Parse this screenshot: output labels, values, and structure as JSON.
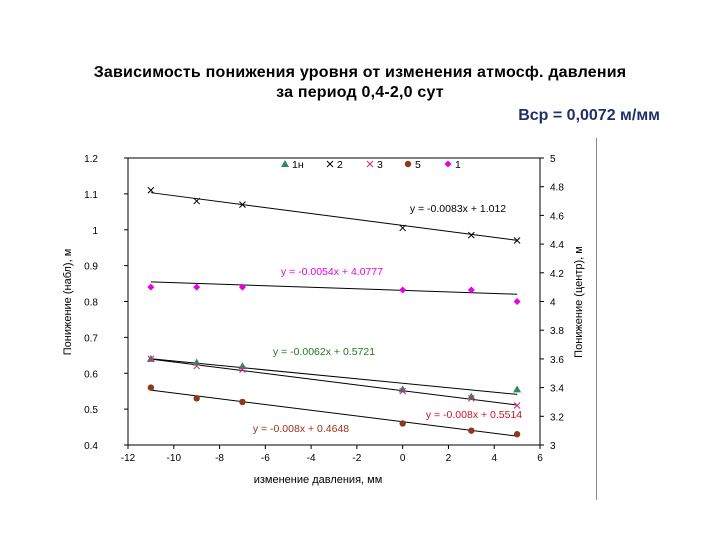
{
  "page": {
    "title_line1": "Зависимость понижения уровня от изменения атмосф. давления",
    "title_line2": "за период 0,4-2,0 сут",
    "subtitle": "Вср = 0,0072 м/мм"
  },
  "chart_data": {
    "type": "scatter",
    "xlabel": "изменение давления, мм",
    "ylabel_left": "Понижение (набл), м",
    "ylabel_right": "Понижение (центр), м",
    "xlim": [
      -12,
      6
    ],
    "x_ticks": [
      "-12",
      "-10",
      "-8",
      "-6",
      "-4",
      "-2",
      "0",
      "2",
      "4",
      "6"
    ],
    "ylim_left": [
      0.4,
      1.2
    ],
    "y_ticks_left": [
      "0.4",
      "0.5",
      "0.6",
      "0.7",
      "0.8",
      "0.9",
      "1",
      "1.1",
      "1.2"
    ],
    "ylim_right": [
      3,
      5
    ],
    "y_ticks_right": [
      "3",
      "3.2",
      "3.4",
      "3.6",
      "3.8",
      "4",
      "4.2",
      "4.4",
      "4.6",
      "4.8",
      "5"
    ],
    "grid": false,
    "legend_position": "top",
    "series": [
      {
        "name": "1н",
        "marker": "triangle",
        "color": "#2e8b57",
        "axis": "left",
        "x": [
          -11,
          -9,
          -7,
          0,
          3,
          5
        ],
        "y": [
          0.64,
          0.63,
          0.62,
          0.555,
          0.535,
          0.555
        ]
      },
      {
        "name": "2",
        "marker": "x",
        "color": "#000000",
        "axis": "left",
        "x": [
          -11,
          -9,
          -7,
          0,
          3,
          5
        ],
        "y": [
          1.11,
          1.08,
          1.07,
          1.005,
          0.985,
          0.97
        ]
      },
      {
        "name": "3",
        "marker": "x",
        "color": "#d0208a",
        "axis": "left",
        "x": [
          -11,
          -9,
          -7,
          0,
          3,
          5
        ],
        "y": [
          0.64,
          0.62,
          0.61,
          0.55,
          0.53,
          0.51
        ]
      },
      {
        "name": "5",
        "marker": "circle",
        "color": "#8b3a1a",
        "axis": "left",
        "x": [
          -11,
          -9,
          -7,
          0,
          3,
          5
        ],
        "y": [
          0.56,
          0.53,
          0.52,
          0.46,
          0.44,
          0.43
        ]
      },
      {
        "name": "1",
        "marker": "diamond",
        "color": "#e600e6",
        "axis": "right",
        "x": [
          -11,
          -9,
          -7,
          0,
          3,
          5
        ],
        "y": [
          4.1,
          4.1,
          4.1,
          4.08,
          4.08,
          4.0
        ]
      }
    ],
    "trendlines": [
      {
        "series": "2",
        "slope": -0.0083,
        "intercept": 1.012,
        "axis": "left",
        "label": "y = -0.0083x + 1.012",
        "color": "#000000"
      },
      {
        "series": "1",
        "slope": -0.0054,
        "intercept": 4.0777,
        "axis": "right",
        "label": "y = -0.0054x + 4.0777",
        "color": "#e600e6"
      },
      {
        "series": "1н",
        "slope": -0.0062,
        "intercept": 0.5721,
        "axis": "left",
        "label": "y = -0.0062x + 0.5721",
        "color": "#1f7a1f"
      },
      {
        "series": "3",
        "slope": -0.008,
        "intercept": 0.5514,
        "axis": "left",
        "label": "y = -0.008x + 0.5514",
        "color": "#d0102a"
      },
      {
        "series": "5",
        "slope": -0.008,
        "intercept": 0.4648,
        "axis": "left",
        "label": "y = -0.008x + 0.4648",
        "color": "#a0301a"
      }
    ]
  }
}
